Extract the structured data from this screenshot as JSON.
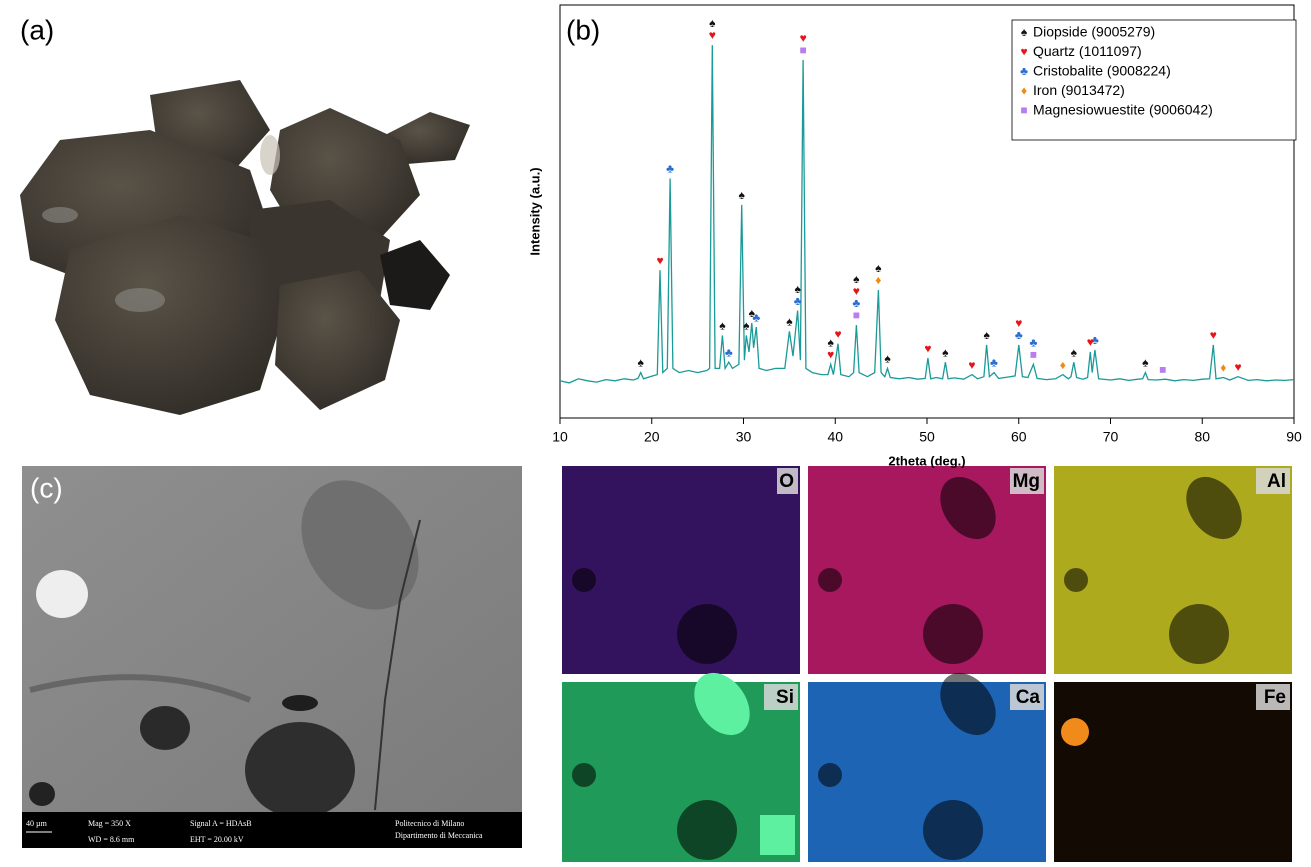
{
  "panel_labels": [
    "(a)",
    "(b)",
    "(c)"
  ],
  "chart_data": {
    "type": "line",
    "xlabel": "2theta (deg.)",
    "ylabel": "Intensity (a.u.)",
    "color": "#1a9a98",
    "xlim": [
      10,
      90
    ],
    "xticks": [
      10,
      20,
      30,
      40,
      50,
      60,
      70,
      80,
      90
    ],
    "ylim": [
      0,
      100
    ],
    "legend": "upper right",
    "x": [
      10,
      11,
      12,
      13,
      14,
      15,
      16,
      17,
      18,
      18.5,
      18.8,
      19.1,
      19.8,
      20.6,
      20.9,
      21.2,
      21.7,
      22.0,
      22.3,
      23,
      24,
      25,
      26,
      26.3,
      26.6,
      26.9,
      27.4,
      27.7,
      28.0,
      28.4,
      28.8,
      29.5,
      29.8,
      30.1,
      30.3,
      30.6,
      30.9,
      31.1,
      31.4,
      31.7,
      32.5,
      33.5,
      34.5,
      35.0,
      35.4,
      35.9,
      36.2,
      36.5,
      36.8,
      37.5,
      38.5,
      39.2,
      39.5,
      39.8,
      40.3,
      40.6,
      41.5,
      42.0,
      42.3,
      42.6,
      43.5,
      44.3,
      44.7,
      45.0,
      45.4,
      45.7,
      46,
      47,
      48,
      49,
      49.8,
      50.1,
      50.4,
      51,
      51.7,
      52.0,
      52.3,
      53,
      54,
      54.9,
      55.5,
      56.2,
      56.5,
      56.8,
      57.3,
      57.8,
      58.5,
      59.6,
      60.0,
      60.4,
      61.0,
      61.6,
      62,
      63,
      64,
      64.8,
      65.4,
      65.7,
      66.0,
      66.3,
      67,
      67.5,
      67.8,
      68.0,
      68.3,
      68.7,
      70,
      71,
      72,
      73,
      73.5,
      73.8,
      74.1,
      75,
      76,
      77,
      78,
      79,
      80,
      80.8,
      81.2,
      81.5,
      82.3,
      83,
      83.9,
      85,
      86,
      87,
      88,
      89,
      90
    ],
    "values": [
      9,
      8.5,
      9.5,
      9,
      8.7,
      9.3,
      9,
      9.5,
      9.2,
      9.6,
      11,
      9.5,
      10,
      10.5,
      35.8,
      11,
      12,
      58,
      12,
      11,
      11.5,
      11,
      11.5,
      12,
      90.3,
      12,
      12,
      20,
      12,
      13.5,
      12,
      13,
      51.6,
      14,
      20,
      16,
      23,
      17,
      22,
      12,
      11.5,
      12,
      12,
      21,
      15,
      26,
      14,
      86.7,
      12,
      11,
      10.5,
      10.5,
      13,
      10.5,
      18,
      10.5,
      10,
      11,
      22.5,
      11,
      10,
      11,
      31,
      11,
      10,
      12,
      9.8,
      9.5,
      9.8,
      9.4,
      9.6,
      14.5,
      9.5,
      9.8,
      9.5,
      13.5,
      9.5,
      9.7,
      9.4,
      10.5,
      9.5,
      10,
      17.7,
      10,
      11,
      9.6,
      9.8,
      10.2,
      17.7,
      10,
      9.8,
      13,
      9.6,
      9.3,
      9.5,
      10.5,
      9.5,
      10,
      13.5,
      9.8,
      9.4,
      9.8,
      16,
      11,
      16.5,
      9.5,
      9.2,
      9.5,
      9.1,
      9.4,
      9.5,
      11,
      9.3,
      9.2,
      9.4,
      9,
      9.3,
      9.1,
      9.4,
      9.5,
      17.7,
      9.5,
      9.8,
      9.2,
      10,
      9.1,
      9.3,
      9,
      9.2,
      9.1,
      9.3
    ],
    "phases": [
      {
        "name": "Diopside (9005279)",
        "symbol": "♠",
        "color": "#111111",
        "peaks": [
          18.8,
          26.6,
          27.7,
          29.8,
          30.3,
          30.9,
          35.0,
          35.9,
          39.5,
          42.3,
          44.7,
          45.7,
          52.0,
          56.5,
          66.0,
          73.8
        ]
      },
      {
        "name": "Quartz (1011097)",
        "symbol": "♥",
        "color": "#e3151a",
        "peaks": [
          20.9,
          26.6,
          36.5,
          39.5,
          40.3,
          42.3,
          50.1,
          54.9,
          60.0,
          67.8,
          81.2,
          83.9
        ]
      },
      {
        "name": "Cristobalite (9008224)",
        "symbol": "♣",
        "color": "#2a6fd0",
        "peaks": [
          22.0,
          28.4,
          31.4,
          35.9,
          42.3,
          57.3,
          60.0,
          61.6,
          68.3
        ]
      },
      {
        "name": "Iron (9013472)",
        "symbol": "♦",
        "color": "#f08a10",
        "peaks": [
          44.7,
          64.8,
          82.3
        ]
      },
      {
        "name": "Magnesiowuestite (9006042)",
        "symbol": "■",
        "color": "#b77ef0",
        "peaks": [
          36.5,
          42.3,
          61.6,
          75.7
        ]
      }
    ]
  },
  "sem_info": {
    "scale": "40 µm",
    "mag": "Mag =  350 X",
    "wd": "WD =  8.6 mm",
    "signal": "Signal A = HDAsB",
    "eht": "EHT = 20.00 kV",
    "institution": "Politecnico di Milano",
    "department": "Dipartimento di Meccanica"
  },
  "eds_maps": [
    "O",
    "Mg",
    "Al",
    "Si",
    "Ca",
    "Fe"
  ]
}
